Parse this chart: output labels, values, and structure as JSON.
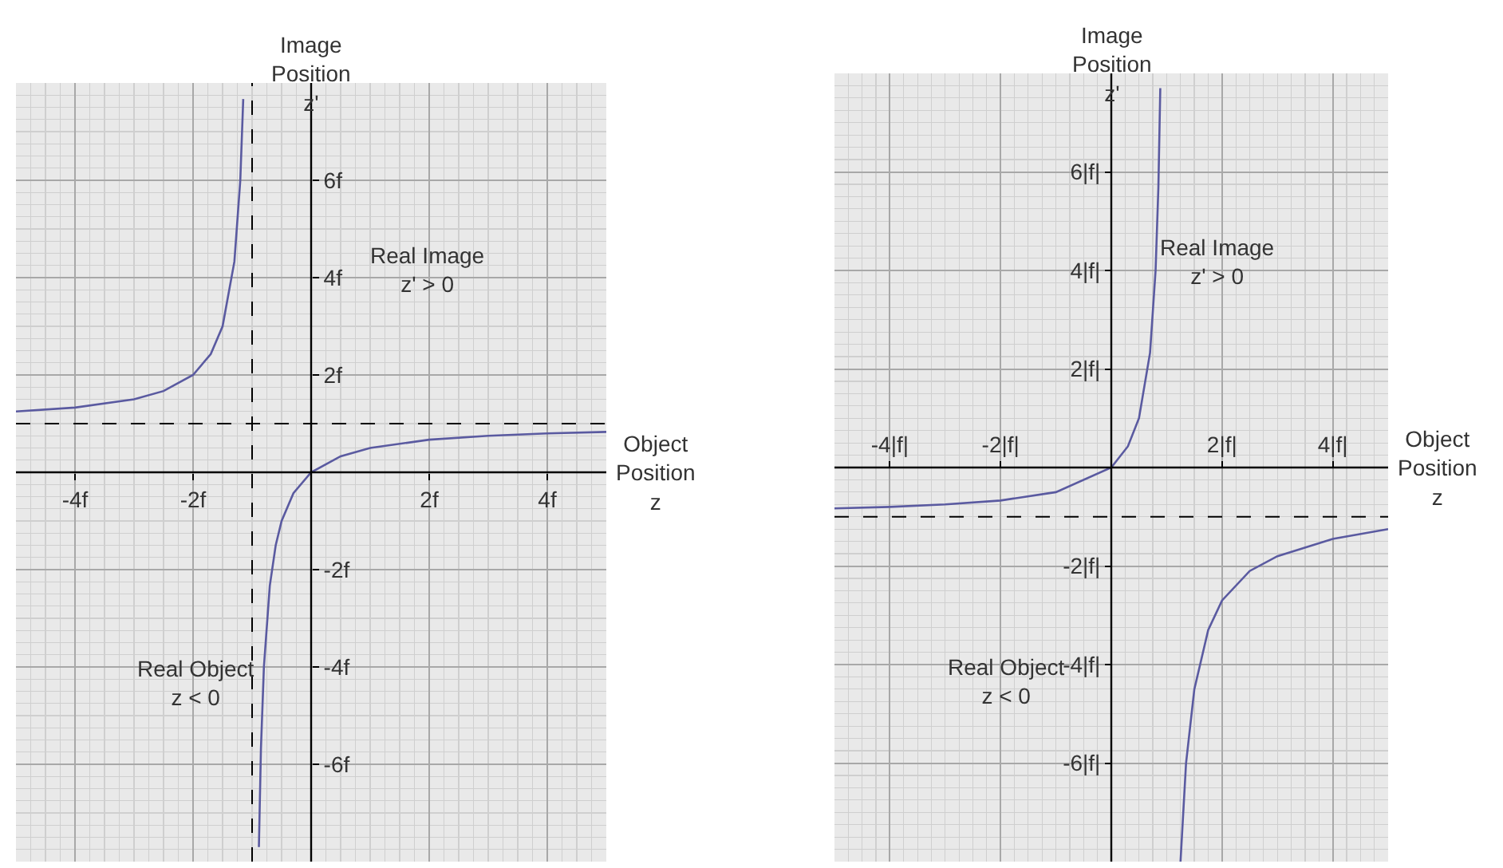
{
  "chart_data": [
    {
      "type": "line",
      "xlabel": "Object\nPosition\nz",
      "ylabel": "Image\nPosition\nz'",
      "xlim": [
        -5,
        5
      ],
      "ylim": [
        -8,
        8
      ],
      "xticks": [
        {
          "value": -4,
          "label": "-4f"
        },
        {
          "value": -2,
          "label": "-2f"
        },
        {
          "value": 2,
          "label": "2f"
        },
        {
          "value": 4,
          "label": "4f"
        }
      ],
      "yticks": [
        {
          "value": -6,
          "label": "-6f"
        },
        {
          "value": -4,
          "label": "-4f"
        },
        {
          "value": -2,
          "label": "-2f"
        },
        {
          "value": 2,
          "label": "2f"
        },
        {
          "value": 4,
          "label": "4f"
        },
        {
          "value": 6,
          "label": "6f"
        }
      ],
      "grid": true,
      "line_style": "solid",
      "series": [
        {
          "color": "#5a5aa0",
          "x": [
            -5,
            -4,
            -3,
            -2.5,
            -2,
            -1.7,
            -1.5,
            -1.3,
            -1.2,
            -1.15
          ],
          "values": [
            1.25,
            1.33,
            1.5,
            1.67,
            2,
            2.43,
            3,
            4.33,
            6,
            7.67
          ]
        },
        {
          "color": "#5a5aa0",
          "x": [
            -0.885,
            -0.85,
            -0.8,
            -0.7,
            -0.6,
            -0.5,
            -0.3,
            0,
            0.5,
            1,
            2,
            3,
            4,
            5
          ],
          "values": [
            -7.7,
            -5.67,
            -4,
            -2.33,
            -1.5,
            -1,
            -0.43,
            0,
            0.33,
            0.5,
            0.67,
            0.75,
            0.8,
            0.83
          ]
        }
      ],
      "ref_lines": [
        {
          "axis": "x",
          "value": -1,
          "color": "#000000",
          "line_style": "dashed"
        },
        {
          "axis": "y",
          "value": 1,
          "color": "#000000",
          "line_style": "dashed"
        }
      ],
      "annotations": [
        "Real Image\nz' > 0",
        "Real Object\nz < 0"
      ]
    },
    {
      "type": "line",
      "xlabel": "Object\nPosition\nz",
      "ylabel": "Image\nPosition\nz'",
      "xlim": [
        -5,
        5
      ],
      "ylim": [
        -8,
        8
      ],
      "xticks": [
        {
          "value": -4,
          "label": "-4|f|"
        },
        {
          "value": -2,
          "label": "-2|f|"
        },
        {
          "value": 2,
          "label": "2|f|"
        },
        {
          "value": 4,
          "label": "4|f|"
        }
      ],
      "yticks": [
        {
          "value": -6,
          "label": "-6|f|"
        },
        {
          "value": -4,
          "label": "-4|f|"
        },
        {
          "value": -2,
          "label": "-2|f|"
        },
        {
          "value": 2,
          "label": "2|f|"
        },
        {
          "value": 4,
          "label": "4|f|"
        },
        {
          "value": 6,
          "label": "6|f|"
        }
      ],
      "grid": true,
      "line_style": "solid",
      "series": [
        {
          "color": "#5a5aa0",
          "x": [
            -5,
            -4,
            -3,
            -2,
            -1,
            0,
            0.3,
            0.5,
            0.7,
            0.8,
            0.85,
            0.885
          ],
          "values": [
            -0.83,
            -0.8,
            -0.75,
            -0.67,
            -0.5,
            0,
            0.43,
            1,
            2.33,
            4,
            5.67,
            7.7
          ]
        },
        {
          "color": "#5a5aa0",
          "x": [
            1.25,
            1.35,
            1.5,
            1.75,
            2,
            2.5,
            3,
            4,
            5
          ],
          "values": [
            -8,
            -6,
            -4.5,
            -3.3,
            -2.7,
            -2.1,
            -1.8,
            -1.45,
            -1.25
          ]
        }
      ],
      "ref_lines": [
        {
          "axis": "y",
          "value": -1,
          "color": "#000000",
          "line_style": "dashed"
        }
      ],
      "annotations": [
        "Real Image\nz' > 0",
        "Real Object\nz < 0"
      ]
    }
  ]
}
